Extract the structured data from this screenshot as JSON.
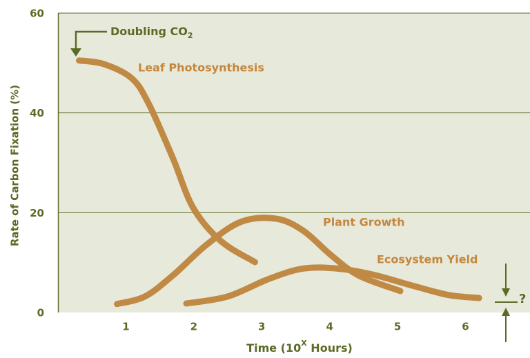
{
  "chart_data": {
    "type": "line",
    "y_label": "Rate of Carbon Fixation (%)",
    "x_label": [
      "Time (10",
      "X",
      " Hours)"
    ],
    "annotations": [
      [
        "Doubling CO",
        "2"
      ],
      "?"
    ],
    "xlim": [
      0,
      6.95
    ],
    "ylim": [
      0,
      60
    ],
    "xticks": [
      1,
      2,
      3,
      4,
      5,
      6
    ],
    "yticks": [
      0,
      20,
      40,
      60
    ],
    "grid": true,
    "series": [
      {
        "name": "Leaf Photosynthesis",
        "color": "#c08a45",
        "x": [
          0.31,
          0.67,
          1.08,
          1.33,
          1.69,
          1.99,
          2.4,
          2.9
        ],
        "values": [
          50.5,
          49.8,
          47,
          42,
          31,
          21,
          14.3,
          10.1
        ]
      },
      {
        "name": "Plant Growth",
        "color": "#c08a45",
        "x": [
          0.87,
          1.28,
          1.69,
          2.19,
          2.7,
          3.21,
          3.61,
          4.02,
          4.43,
          5.04
        ],
        "values": [
          1.7,
          3.2,
          7.4,
          13.6,
          18.2,
          18.8,
          16.4,
          11.5,
          7.4,
          4.3
        ]
      },
      {
        "name": "Ecosystem Yield",
        "color": "#c08a45",
        "x": [
          1.89,
          2.5,
          3.1,
          3.61,
          4.12,
          4.63,
          5.24,
          5.75,
          6.2
        ],
        "values": [
          1.8,
          3.2,
          6.7,
          8.8,
          8.8,
          7.6,
          5.3,
          3.5,
          2.9
        ]
      }
    ]
  }
}
